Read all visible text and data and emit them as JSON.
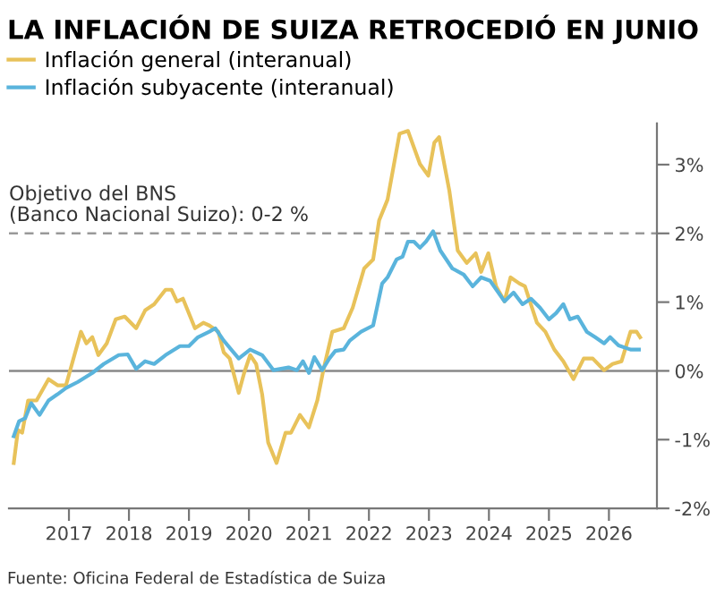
{
  "chart_data": {
    "type": "line",
    "title": "LA INFLACIÓN DE SUIZA RETROCEDIÓ EN JUNIO",
    "annotations": [
      {
        "text": "Objetivo del BNS\n(Banco Nacional Suizo): 0-2 %",
        "x": 2016.0,
        "y": 2
      },
      "Fuente: Oficina Federal de Estadística de Suiza"
    ],
    "legend": "top left",
    "grid": false,
    "marker": "none",
    "line_style": "solid",
    "xlim": [
      2016.0,
      2026.8
    ],
    "xticks": [
      2017,
      2018,
      2019,
      2020,
      2021,
      2022,
      2023,
      2024,
      2025,
      2026
    ],
    "ylim": [
      -2,
      3.6
    ],
    "yticks": [
      {
        "value": -2,
        "label": "-2%"
      },
      {
        "value": -1,
        "label": "-1%"
      },
      {
        "value": 0,
        "label": "0%"
      },
      {
        "value": 1,
        "label": "1%"
      },
      {
        "value": 2,
        "label": "2%"
      },
      {
        "value": 3,
        "label": "3%"
      }
    ],
    "ref_lines": [
      {
        "axis": "y",
        "value": 2,
        "color": "#999999",
        "line_style": "dashed"
      },
      {
        "axis": "y",
        "value": 0,
        "color": "#888888",
        "line_style": "solid"
      }
    ],
    "series": [
      {
        "name": "Inflación general (interanual)",
        "color": "#e8c25a",
        "x": [
          2016.08,
          2016.15,
          2016.22,
          2016.32,
          2016.46,
          2016.66,
          2016.81,
          2016.95,
          2017.05,
          2017.2,
          2017.29,
          2017.39,
          2017.49,
          2017.63,
          2017.78,
          2017.93,
          2018.12,
          2018.27,
          2018.42,
          2018.61,
          2018.71,
          2018.8,
          2018.9,
          2019.1,
          2019.24,
          2019.34,
          2019.49,
          2019.58,
          2019.68,
          2019.83,
          2019.92,
          2020.02,
          2020.12,
          2020.22,
          2020.32,
          2020.46,
          2020.61,
          2020.7,
          2020.85,
          2021.0,
          2021.14,
          2021.24,
          2021.39,
          2021.58,
          2021.73,
          2021.92,
          2022.07,
          2022.17,
          2022.31,
          2022.51,
          2022.65,
          2022.85,
          2022.99,
          2023.09,
          2023.17,
          2023.34,
          2023.48,
          2023.63,
          2023.78,
          2023.87,
          2023.99,
          2024.12,
          2024.26,
          2024.36,
          2024.51,
          2024.6,
          2024.8,
          2024.94,
          2025.09,
          2025.24,
          2025.41,
          2025.58,
          2025.73,
          2025.92,
          2026.06,
          2026.21,
          2026.36,
          2026.46,
          2026.52
        ],
        "values": [
          -1.34,
          -0.86,
          -0.9,
          -0.43,
          -0.43,
          -0.12,
          -0.21,
          -0.21,
          0.1,
          0.57,
          0.4,
          0.49,
          0.23,
          0.4,
          0.75,
          0.79,
          0.62,
          0.88,
          0.97,
          1.18,
          1.18,
          1.01,
          1.05,
          0.62,
          0.7,
          0.66,
          0.57,
          0.27,
          0.18,
          -0.32,
          -0.03,
          0.23,
          0.1,
          -0.34,
          -1.04,
          -1.34,
          -0.9,
          -0.9,
          -0.64,
          -0.82,
          -0.43,
          0.01,
          0.57,
          0.62,
          0.92,
          1.49,
          1.62,
          2.19,
          2.49,
          3.45,
          3.49,
          3.01,
          2.84,
          3.32,
          3.4,
          2.62,
          1.75,
          1.57,
          1.71,
          1.44,
          1.71,
          1.23,
          1.01,
          1.36,
          1.27,
          1.23,
          0.7,
          0.57,
          0.31,
          0.14,
          -0.12,
          0.18,
          0.18,
          0.01,
          0.1,
          0.14,
          0.57,
          0.57,
          0.49
        ]
      },
      {
        "name": "Inflación subyacente (interanual)",
        "color": "#5ab4dc",
        "x": [
          2016.08,
          2016.17,
          2016.27,
          2016.37,
          2016.51,
          2016.66,
          2016.81,
          2016.95,
          2017.15,
          2017.39,
          2017.58,
          2017.83,
          2017.98,
          2018.12,
          2018.27,
          2018.42,
          2018.61,
          2018.85,
          2019.0,
          2019.15,
          2019.34,
          2019.44,
          2019.58,
          2019.83,
          2020.02,
          2020.22,
          2020.41,
          2020.66,
          2020.8,
          2020.9,
          2021.0,
          2021.09,
          2021.22,
          2021.34,
          2021.44,
          2021.58,
          2021.68,
          2021.87,
          2022.07,
          2022.22,
          2022.31,
          2022.46,
          2022.56,
          2022.65,
          2022.75,
          2022.85,
          2022.95,
          2023.07,
          2023.19,
          2023.39,
          2023.58,
          2023.73,
          2023.87,
          2024.02,
          2024.26,
          2024.41,
          2024.56,
          2024.7,
          2024.85,
          2025.0,
          2025.12,
          2025.24,
          2025.35,
          2025.48,
          2025.63,
          2025.77,
          2025.92,
          2026.02,
          2026.16,
          2026.36,
          2026.5
        ],
        "values": [
          -0.95,
          -0.73,
          -0.69,
          -0.47,
          -0.64,
          -0.43,
          -0.34,
          -0.25,
          -0.16,
          -0.03,
          0.1,
          0.23,
          0.24,
          0.03,
          0.14,
          0.1,
          0.23,
          0.36,
          0.36,
          0.49,
          0.57,
          0.62,
          0.44,
          0.18,
          0.31,
          0.23,
          0.01,
          0.05,
          0.01,
          0.14,
          -0.03,
          0.2,
          0.01,
          0.18,
          0.29,
          0.31,
          0.44,
          0.57,
          0.66,
          1.27,
          1.36,
          1.62,
          1.66,
          1.88,
          1.88,
          1.79,
          1.88,
          2.03,
          1.75,
          1.49,
          1.4,
          1.23,
          1.36,
          1.31,
          1.01,
          1.14,
          0.97,
          1.05,
          0.92,
          0.75,
          0.84,
          0.97,
          0.75,
          0.79,
          0.57,
          0.49,
          0.4,
          0.49,
          0.37,
          0.31,
          0.31
        ]
      }
    ]
  }
}
